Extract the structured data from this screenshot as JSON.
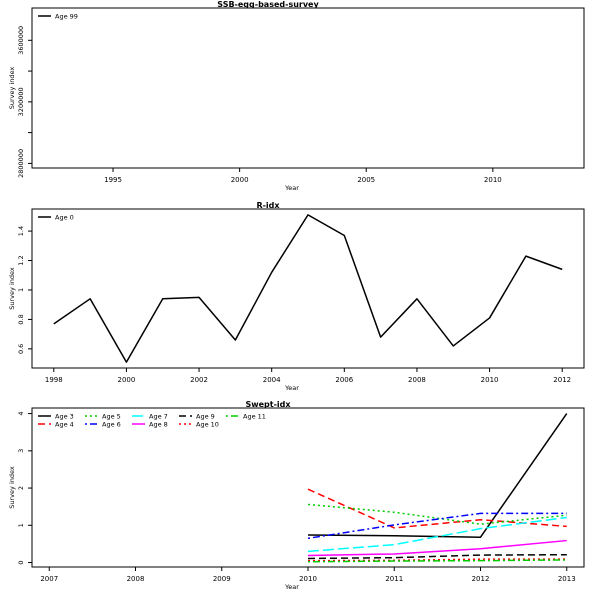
{
  "chart_data": [
    {
      "type": "line",
      "title": "SSB-egg-based-survey",
      "xlabel": "Year",
      "ylabel": "Survey index",
      "xlim": [
        1991.8,
        2013.6
      ],
      "ylim": [
        2770000,
        3810000
      ],
      "x_ticks": [
        1995,
        2000,
        2005,
        2010
      ],
      "y_ticks": [
        2800000,
        3200000,
        3600000
      ],
      "y_ticks_unlabeled": [
        3000000,
        3400000
      ],
      "legend": {
        "position": "top-left",
        "entries": [
          {
            "label": "Age 99",
            "color": "#000000",
            "dash": "solid"
          }
        ]
      },
      "series": []
    },
    {
      "type": "line",
      "title": "R-idx",
      "xlabel": "Year",
      "ylabel": "Survey index",
      "xlim": [
        1997.4,
        2012.6
      ],
      "ylim": [
        0.47,
        1.55
      ],
      "x_ticks": [
        1998,
        2000,
        2002,
        2004,
        2006,
        2008,
        2010,
        2012
      ],
      "y_ticks": [
        0.6,
        0.8,
        1.0,
        1.2,
        1.4
      ],
      "legend": {
        "position": "top-left",
        "entries": [
          {
            "label": "Age 0",
            "color": "#000000",
            "dash": "solid"
          }
        ]
      },
      "series": [
        {
          "name": "Age 0",
          "color": "#000000",
          "dash": "solid",
          "x": [
            1998,
            1999,
            2000,
            2001,
            2002,
            2003,
            2004,
            2005,
            2006,
            2007,
            2008,
            2009,
            2010,
            2011,
            2012
          ],
          "values": [
            0.77,
            0.94,
            0.51,
            0.94,
            0.95,
            0.66,
            1.12,
            1.51,
            1.37,
            0.68,
            0.94,
            0.62,
            0.81,
            1.23,
            1.14
          ]
        }
      ]
    },
    {
      "type": "line",
      "title": "Swept-idx",
      "xlabel": "Year",
      "ylabel": "Survey index",
      "xlim": [
        2006.8,
        2013.2
      ],
      "ylim": [
        -0.12,
        4.15
      ],
      "x_ticks": [
        2007,
        2008,
        2009,
        2010,
        2011,
        2012,
        2013
      ],
      "y_ticks": [
        0,
        1,
        2,
        3,
        4
      ],
      "legend": {
        "position": "top-left",
        "entries": [
          {
            "label": "Age 3",
            "color": "#000000",
            "dash": "solid"
          },
          {
            "label": "Age 4",
            "color": "#ff0000",
            "dash": "dashed"
          },
          {
            "label": "Age 5",
            "color": "#00cd00",
            "dash": "dotted"
          },
          {
            "label": "Age 6",
            "color": "#0000ff",
            "dash": "dotdash"
          },
          {
            "label": "Age 7",
            "color": "#00ffff",
            "dash": "longdash"
          },
          {
            "label": "Age 8",
            "color": "#ff00ff",
            "dash": "solid"
          },
          {
            "label": "Age 9",
            "color": "#000000",
            "dash": "dashed"
          },
          {
            "label": "Age 10",
            "color": "#ff0000",
            "dash": "dotted"
          },
          {
            "label": "Age 11",
            "color": "#00cd00",
            "dash": "dotdash"
          }
        ]
      },
      "series": [
        {
          "name": "Age 3",
          "color": "#000000",
          "dash": "solid",
          "x": [
            2010,
            2011,
            2012,
            2013
          ],
          "values": [
            0.74,
            0.72,
            0.68,
            4.0
          ]
        },
        {
          "name": "Age 4",
          "color": "#ff0000",
          "dash": "dashed",
          "x": [
            2010,
            2011,
            2012,
            2013
          ],
          "values": [
            1.97,
            0.93,
            1.15,
            0.97
          ]
        },
        {
          "name": "Age 5",
          "color": "#00cd00",
          "dash": "dotted",
          "x": [
            2010,
            2011,
            2012,
            2013
          ],
          "values": [
            1.56,
            1.35,
            1.03,
            1.27
          ]
        },
        {
          "name": "Age 6",
          "color": "#0000ff",
          "dash": "dotdash",
          "x": [
            2010,
            2011,
            2012,
            2013
          ],
          "values": [
            0.65,
            1.01,
            1.32,
            1.32
          ]
        },
        {
          "name": "Age 7",
          "color": "#00ffff",
          "dash": "longdash",
          "x": [
            2010,
            2011,
            2012,
            2013
          ],
          "values": [
            0.3,
            0.48,
            0.91,
            1.21
          ]
        },
        {
          "name": "Age 8",
          "color": "#ff00ff",
          "dash": "solid",
          "x": [
            2010,
            2011,
            2012,
            2013
          ],
          "values": [
            0.19,
            0.23,
            0.37,
            0.59
          ]
        },
        {
          "name": "Age 9",
          "color": "#000000",
          "dash": "dashed",
          "x": [
            2010,
            2011,
            2012,
            2013
          ],
          "values": [
            0.11,
            0.13,
            0.2,
            0.21
          ]
        },
        {
          "name": "Age 10",
          "color": "#ff0000",
          "dash": "dotted",
          "x": [
            2010,
            2011,
            2012,
            2013
          ],
          "values": [
            0.05,
            0.06,
            0.09,
            0.09
          ]
        },
        {
          "name": "Age 11",
          "color": "#00cd00",
          "dash": "dotdash",
          "x": [
            2010,
            2011,
            2012,
            2013
          ],
          "values": [
            0.02,
            0.04,
            0.05,
            0.07
          ]
        }
      ]
    }
  ]
}
